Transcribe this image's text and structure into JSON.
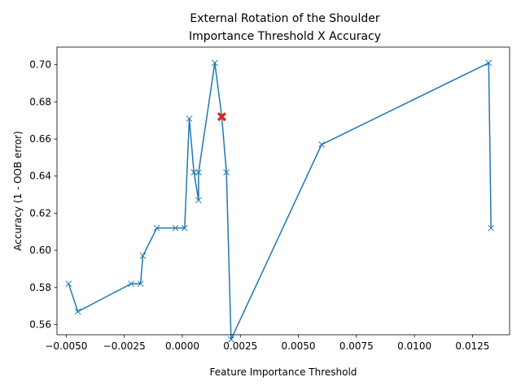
{
  "chart_data": {
    "type": "line",
    "title_lines": [
      "External Rotation of the Shoulder",
      "Importance Threshold X Accuracy"
    ],
    "xlabel": "Feature Importance Threshold",
    "ylabel": "Accuracy (1 - OOB error)",
    "xlim": [
      -0.0054,
      0.0141
    ],
    "ylim": [
      0.5545,
      0.7095
    ],
    "grid": false,
    "xticks": [
      -0.005,
      -0.0025,
      0.0,
      0.0025,
      0.005,
      0.0075,
      0.01,
      0.0125
    ],
    "xtick_labels": [
      "−0.0050",
      "−0.0025",
      "0.0000",
      "0.0025",
      "0.0050",
      "0.0075",
      "0.0100",
      "0.0125"
    ],
    "yticks": [
      0.56,
      0.58,
      0.6,
      0.62,
      0.64,
      0.66,
      0.68,
      0.7
    ],
    "ytick_labels": [
      "0.56",
      "0.58",
      "0.60",
      "0.62",
      "0.64",
      "0.66",
      "0.68",
      "0.70"
    ],
    "series": [
      {
        "marker": "x",
        "color": "#1f77b4",
        "points": [
          [
            -0.0049,
            0.582
          ],
          [
            -0.0045,
            0.567
          ],
          [
            -0.0022,
            0.582
          ],
          [
            -0.0018,
            0.582
          ],
          [
            -0.0017,
            0.597
          ],
          [
            -0.0011,
            0.612
          ],
          [
            -0.0003,
            0.612
          ],
          [
            0.0001,
            0.612
          ],
          [
            0.0003,
            0.671
          ],
          [
            0.0005,
            0.642
          ],
          [
            0.0007,
            0.627
          ],
          [
            0.0007,
            0.642
          ],
          [
            0.0014,
            0.701
          ],
          [
            0.0017,
            0.672
          ],
          [
            0.0019,
            0.642
          ],
          [
            0.0021,
            0.552
          ],
          [
            0.006,
            0.657
          ],
          [
            0.0132,
            0.701
          ],
          [
            0.0133,
            0.612
          ]
        ]
      }
    ],
    "highlight": {
      "x": 0.0017,
      "y": 0.672,
      "marker": "X",
      "color": "#d62728"
    }
  }
}
